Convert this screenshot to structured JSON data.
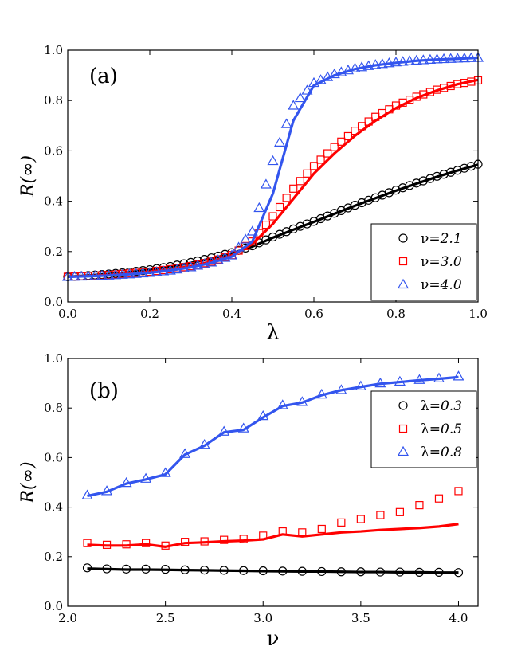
{
  "chart_data": [
    {
      "type": "line",
      "panel_label": "(a)",
      "xlabel": "λ",
      "ylabel": "R(∞)",
      "xlim": [
        0.0,
        1.0
      ],
      "ylim": [
        0.0,
        1.0
      ],
      "xticks": [
        "0.0",
        "0.2",
        "0.4",
        "0.6",
        "0.8",
        "1.0"
      ],
      "yticks": [
        "0.0",
        "0.2",
        "0.4",
        "0.6",
        "0.8",
        "1.0"
      ],
      "legend_position": "bottom-right",
      "series": [
        {
          "name": "ν=2.1",
          "prefix": "ν=",
          "value_text": "2.1",
          "color": "#000000",
          "marker": "circle",
          "x": [
            0.0,
            0.05,
            0.1,
            0.15,
            0.2,
            0.25,
            0.3,
            0.35,
            0.4,
            0.45,
            0.5,
            0.55,
            0.6,
            0.65,
            0.7,
            0.75,
            0.8,
            0.85,
            0.9,
            0.95,
            1.0
          ],
          "line": [
            0.1,
            0.105,
            0.111,
            0.118,
            0.128,
            0.14,
            0.155,
            0.172,
            0.193,
            0.22,
            0.255,
            0.287,
            0.318,
            0.35,
            0.382,
            0.412,
            0.442,
            0.47,
            0.497,
            0.522,
            0.545
          ],
          "markers": [
            0.1,
            0.105,
            0.111,
            0.118,
            0.128,
            0.141,
            0.157,
            0.175,
            0.196,
            0.223,
            0.258,
            0.29,
            0.32,
            0.352,
            0.384,
            0.414,
            0.444,
            0.472,
            0.499,
            0.523,
            0.547
          ]
        },
        {
          "name": "ν=3.0",
          "prefix": "ν=",
          "value_text": "3.0",
          "color": "#ff0000",
          "marker": "square",
          "x": [
            0.0,
            0.05,
            0.1,
            0.15,
            0.2,
            0.25,
            0.3,
            0.35,
            0.4,
            0.45,
            0.5,
            0.55,
            0.6,
            0.65,
            0.7,
            0.75,
            0.8,
            0.85,
            0.9,
            0.95,
            1.0
          ],
          "line": [
            0.1,
            0.103,
            0.107,
            0.113,
            0.12,
            0.13,
            0.142,
            0.16,
            0.185,
            0.23,
            0.31,
            0.41,
            0.51,
            0.59,
            0.66,
            0.72,
            0.77,
            0.81,
            0.84,
            0.865,
            0.882
          ],
          "markers": [
            0.1,
            0.103,
            0.107,
            0.113,
            0.12,
            0.13,
            0.142,
            0.16,
            0.186,
            0.24,
            0.34,
            0.45,
            0.54,
            0.615,
            0.68,
            0.735,
            0.78,
            0.815,
            0.843,
            0.865,
            0.88
          ]
        },
        {
          "name": "ν=4.0",
          "prefix": "ν=",
          "value_text": "4.0",
          "color": "#3355ee",
          "marker": "triangle",
          "x": [
            0.0,
            0.05,
            0.1,
            0.15,
            0.2,
            0.25,
            0.3,
            0.35,
            0.4,
            0.45,
            0.5,
            0.55,
            0.6,
            0.65,
            0.7,
            0.75,
            0.8,
            0.85,
            0.9,
            0.95,
            1.0
          ],
          "line": [
            0.1,
            0.102,
            0.105,
            0.11,
            0.116,
            0.125,
            0.137,
            0.155,
            0.18,
            0.24,
            0.43,
            0.72,
            0.86,
            0.9,
            0.925,
            0.94,
            0.95,
            0.958,
            0.963,
            0.966,
            0.97
          ],
          "markers": [
            0.1,
            0.102,
            0.105,
            0.11,
            0.116,
            0.125,
            0.138,
            0.157,
            0.185,
            0.28,
            0.56,
            0.78,
            0.87,
            0.905,
            0.928,
            0.942,
            0.952,
            0.959,
            0.964,
            0.967,
            0.97
          ]
        }
      ]
    },
    {
      "type": "line",
      "panel_label": "(b)",
      "xlabel": "ν",
      "ylabel": "R(∞)",
      "xlim": [
        2.0,
        4.1
      ],
      "ylim": [
        0.0,
        1.0
      ],
      "xticks": [
        "2.0",
        "2.5",
        "3.0",
        "3.5",
        "4.0"
      ],
      "yticks": [
        "0.0",
        "0.2",
        "0.4",
        "0.6",
        "0.8",
        "1.0"
      ],
      "legend_position": "top-right",
      "series": [
        {
          "name": "λ=0.3",
          "prefix": "λ=",
          "value_text": "0.3",
          "color": "#000000",
          "marker": "circle",
          "x": [
            2.1,
            2.2,
            2.3,
            2.4,
            2.5,
            2.6,
            2.7,
            2.8,
            2.9,
            3.0,
            3.1,
            3.2,
            3.3,
            3.4,
            3.5,
            3.6,
            3.7,
            3.8,
            3.9,
            4.0
          ],
          "line": [
            0.152,
            0.15,
            0.148,
            0.148,
            0.147,
            0.146,
            0.145,
            0.144,
            0.143,
            0.142,
            0.141,
            0.14,
            0.14,
            0.139,
            0.138,
            0.138,
            0.137,
            0.137,
            0.136,
            0.136
          ],
          "markers": [
            0.155,
            0.151,
            0.15,
            0.15,
            0.149,
            0.147,
            0.146,
            0.145,
            0.144,
            0.143,
            0.142,
            0.141,
            0.14,
            0.139,
            0.139,
            0.138,
            0.138,
            0.137,
            0.137,
            0.136
          ]
        },
        {
          "name": "λ=0.5",
          "prefix": "λ=",
          "value_text": "0.5",
          "color": "#ff0000",
          "marker": "square",
          "x": [
            2.1,
            2.2,
            2.3,
            2.4,
            2.5,
            2.6,
            2.7,
            2.8,
            2.9,
            3.0,
            3.1,
            3.2,
            3.3,
            3.4,
            3.5,
            3.6,
            3.7,
            3.8,
            3.9,
            4.0
          ],
          "line": [
            0.248,
            0.245,
            0.245,
            0.25,
            0.24,
            0.255,
            0.258,
            0.262,
            0.265,
            0.27,
            0.29,
            0.282,
            0.29,
            0.298,
            0.302,
            0.308,
            0.312,
            0.316,
            0.322,
            0.332
          ],
          "markers": [
            0.255,
            0.248,
            0.25,
            0.255,
            0.245,
            0.26,
            0.262,
            0.268,
            0.272,
            0.285,
            0.302,
            0.298,
            0.312,
            0.338,
            0.352,
            0.368,
            0.38,
            0.408,
            0.435,
            0.465
          ]
        },
        {
          "name": "λ=0.8",
          "prefix": "λ=",
          "value_text": "0.8",
          "color": "#3355ee",
          "marker": "triangle",
          "x": [
            2.1,
            2.2,
            2.3,
            2.4,
            2.5,
            2.6,
            2.7,
            2.8,
            2.9,
            3.0,
            3.1,
            3.2,
            3.3,
            3.4,
            3.5,
            3.6,
            3.7,
            3.8,
            3.9,
            4.0
          ],
          "line": [
            0.445,
            0.462,
            0.495,
            0.512,
            0.532,
            0.612,
            0.648,
            0.702,
            0.712,
            0.762,
            0.808,
            0.822,
            0.852,
            0.872,
            0.885,
            0.898,
            0.905,
            0.912,
            0.918,
            0.925
          ],
          "markers": [
            0.448,
            0.465,
            0.498,
            0.515,
            0.538,
            0.615,
            0.652,
            0.705,
            0.718,
            0.768,
            0.812,
            0.825,
            0.855,
            0.873,
            0.888,
            0.9,
            0.907,
            0.914,
            0.92,
            0.928
          ]
        }
      ]
    }
  ]
}
